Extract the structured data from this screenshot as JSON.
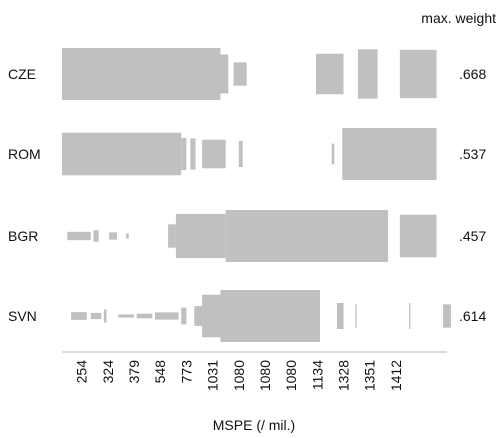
{
  "chart_data": {
    "type": "bar",
    "title": "",
    "xlabel": "MSPE (/ mil.)",
    "ylabel": "",
    "weight_header": "max. weight",
    "x_tick_labels": [
      "254",
      "324",
      "379",
      "548",
      "773",
      "1031",
      "1080",
      "1080",
      "1080",
      "1134",
      "1328",
      "1351",
      "1412"
    ],
    "series": [
      {
        "name": "CZE",
        "max_weight": ".668",
        "segments": [
          {
            "from": 0.0,
            "to": 6.05,
            "weight": 1.0
          },
          {
            "from": 6.05,
            "to": 6.35,
            "weight": 0.75
          },
          {
            "from": 6.55,
            "to": 7.05,
            "weight": 0.45
          },
          {
            "from": 9.7,
            "to": 10.75,
            "weight": 0.78
          },
          {
            "from": 11.3,
            "to": 12.05,
            "weight": 0.95
          },
          {
            "from": 12.9,
            "to": 14.3,
            "weight": 0.93
          }
        ]
      },
      {
        "name": "ROM",
        "max_weight": ".537",
        "segments": [
          {
            "from": 0.0,
            "to": 4.55,
            "weight": 0.82
          },
          {
            "from": 4.55,
            "to": 4.75,
            "weight": 0.62
          },
          {
            "from": 4.9,
            "to": 5.1,
            "weight": 0.6
          },
          {
            "from": 5.35,
            "to": 6.25,
            "weight": 0.55
          },
          {
            "from": 6.75,
            "to": 6.9,
            "weight": 0.5
          },
          {
            "from": 10.3,
            "to": 10.4,
            "weight": 0.4
          },
          {
            "from": 10.7,
            "to": 14.3,
            "weight": 1.0
          }
        ]
      },
      {
        "name": "BGR",
        "max_weight": ".457",
        "segments": [
          {
            "from": 0.2,
            "to": 1.1,
            "weight": 0.16
          },
          {
            "from": 1.2,
            "to": 1.4,
            "weight": 0.22
          },
          {
            "from": 1.8,
            "to": 2.1,
            "weight": 0.14
          },
          {
            "from": 2.45,
            "to": 2.55,
            "weight": 0.1
          },
          {
            "from": 4.05,
            "to": 4.35,
            "weight": 0.45
          },
          {
            "from": 4.35,
            "to": 6.25,
            "weight": 0.85
          },
          {
            "from": 6.25,
            "to": 12.45,
            "weight": 1.0
          },
          {
            "from": 12.9,
            "to": 14.3,
            "weight": 0.82
          }
        ]
      },
      {
        "name": "SVN",
        "max_weight": ".614",
        "segments": [
          {
            "from": 0.35,
            "to": 0.95,
            "weight": 0.15
          },
          {
            "from": 1.1,
            "to": 1.5,
            "weight": 0.12
          },
          {
            "from": 1.6,
            "to": 1.7,
            "weight": 0.25
          },
          {
            "from": 2.15,
            "to": 2.75,
            "weight": 0.06
          },
          {
            "from": 2.85,
            "to": 3.45,
            "weight": 0.09
          },
          {
            "from": 3.55,
            "to": 4.45,
            "weight": 0.14
          },
          {
            "from": 4.55,
            "to": 4.75,
            "weight": 0.32
          },
          {
            "from": 5.05,
            "to": 5.35,
            "weight": 0.38
          },
          {
            "from": 5.35,
            "to": 6.05,
            "weight": 0.82
          },
          {
            "from": 6.05,
            "to": 9.85,
            "weight": 1.0
          },
          {
            "from": 10.5,
            "to": 10.75,
            "weight": 0.5
          },
          {
            "from": 11.2,
            "to": 11.25,
            "weight": 0.45
          },
          {
            "from": 13.25,
            "to": 13.3,
            "weight": 0.5
          },
          {
            "from": 14.55,
            "to": 14.85,
            "weight": 0.45
          }
        ]
      }
    ],
    "colors": {
      "bar": "#c0c0c0",
      "axis": "#d0d0d0",
      "text": "#111111"
    }
  }
}
